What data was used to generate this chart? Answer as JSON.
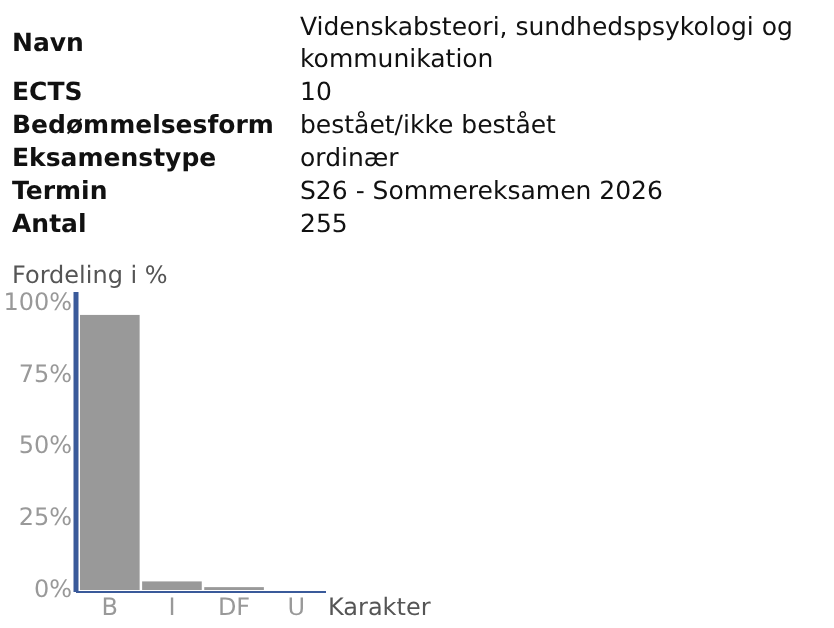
{
  "chart_data": {
    "type": "bar",
    "ylabel": "Fordeling i %",
    "xlabel": "Karakter",
    "categories": [
      "B",
      "I",
      "DF",
      "U"
    ],
    "values": [
      96,
      3,
      1,
      0
    ],
    "color": "#999999",
    "ylim": [
      0,
      104
    ],
    "yticks": [
      {
        "value": 0,
        "label": "0%"
      },
      {
        "value": 25,
        "label": "25%"
      },
      {
        "value": 50,
        "label": "50%"
      },
      {
        "value": 75,
        "label": "75%"
      },
      {
        "value": 100,
        "label": "100%"
      }
    ],
    "grid": false,
    "annotations": [
      "Navn",
      "Videnskabsteori, sundhedspsykologi og kommunikation",
      "ECTS",
      "10",
      "Bedømmelsesform",
      "bestået/ikke bestået",
      "Eksamenstype",
      "ordinær",
      "Termin",
      "S26 - Sommereksamen 2026",
      "Antal",
      "255"
    ]
  }
}
